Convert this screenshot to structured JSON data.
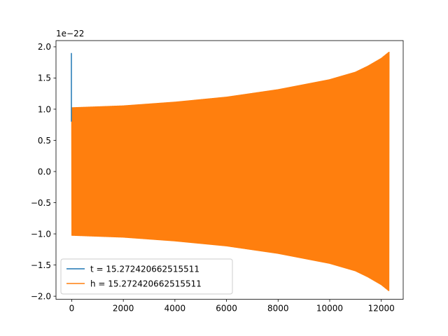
{
  "chart_data": {
    "type": "line",
    "title": "",
    "xlabel": "",
    "ylabel": "",
    "offset_text": "1e−22",
    "xlim": [
      -610,
      12850
    ],
    "ylim": [
      -2.05,
      2.1
    ],
    "y_scale_exponent": -22,
    "x_ticks": [
      {
        "value": 0,
        "label": "0"
      },
      {
        "value": 2000,
        "label": "2000"
      },
      {
        "value": 4000,
        "label": "4000"
      },
      {
        "value": 6000,
        "label": "6000"
      },
      {
        "value": 8000,
        "label": "8000"
      },
      {
        "value": 10000,
        "label": "10000"
      },
      {
        "value": 12000,
        "label": "12000"
      }
    ],
    "y_ticks": [
      {
        "value": -2.0,
        "label": "−2.0"
      },
      {
        "value": -1.5,
        "label": "−1.5"
      },
      {
        "value": -1.0,
        "label": "−1.0"
      },
      {
        "value": -0.5,
        "label": "−0.5"
      },
      {
        "value": 0.0,
        "label": "0.0"
      },
      {
        "value": 0.5,
        "label": "0.5"
      },
      {
        "value": 1.0,
        "label": "1.0"
      },
      {
        "value": 1.5,
        "label": "1.5"
      },
      {
        "value": 2.0,
        "label": "2.0"
      }
    ],
    "grid": false,
    "legend": "lower-left",
    "series": [
      {
        "name": "t = 15.272420662515511",
        "color": "#1f77b4",
        "x": [
          0,
          0,
          0
        ],
        "y": [
          0.8,
          1.9,
          0.8
        ]
      },
      {
        "name": "h = 15.272420662515511",
        "color": "#ff7f0e",
        "x_range": [
          0,
          12300
        ],
        "envelope": {
          "x": [
            0,
            2000,
            4000,
            6000,
            8000,
            10000,
            11000,
            11500,
            12000,
            12300
          ],
          "amplitude": [
            1.03,
            1.06,
            1.12,
            1.2,
            1.32,
            1.48,
            1.6,
            1.7,
            1.82,
            1.92
          ]
        }
      }
    ]
  }
}
